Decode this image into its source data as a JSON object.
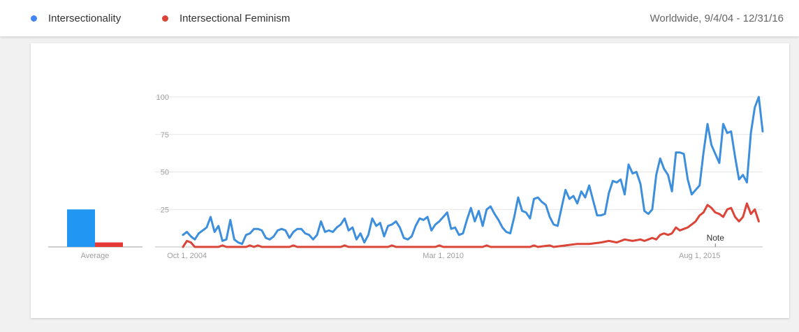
{
  "header": {
    "legend": [
      {
        "label": "Intersectionality",
        "color": "#4285f4"
      },
      {
        "label": "Intersectional Feminism",
        "color": "#db4437"
      }
    ],
    "region_range": "Worldwide, 9/4/04 - 12/31/16"
  },
  "chart_data": {
    "type": "line",
    "ylim": [
      0,
      100
    ],
    "y_ticks": [
      25,
      50,
      75,
      100
    ],
    "x_range": [
      "2004-09",
      "2016-12"
    ],
    "x_ticks": [
      {
        "label": "Oct 1, 2004",
        "date": "2004-10"
      },
      {
        "label": "Mar 1, 2010",
        "date": "2010-03"
      },
      {
        "label": "Aug 1, 2015",
        "date": "2015-08"
      }
    ],
    "annotation": {
      "label": "Note",
      "date": "2015-12"
    },
    "series": [
      {
        "name": "Intersectionality",
        "color": "#3d8fdd",
        "points": [
          [
            "2004-09",
            8
          ],
          [
            "2004-10",
            10
          ],
          [
            "2004-11",
            7
          ],
          [
            "2004-12",
            5
          ],
          [
            "2005-01",
            9
          ],
          [
            "2005-02",
            11
          ],
          [
            "2005-03",
            13
          ],
          [
            "2005-04",
            20
          ],
          [
            "2005-05",
            10
          ],
          [
            "2005-06",
            14
          ],
          [
            "2005-07",
            4
          ],
          [
            "2005-08",
            5
          ],
          [
            "2005-09",
            18
          ],
          [
            "2005-10",
            5
          ],
          [
            "2005-11",
            3
          ],
          [
            "2005-12",
            2
          ],
          [
            "2006-01",
            8
          ],
          [
            "2006-02",
            9
          ],
          [
            "2006-03",
            12
          ],
          [
            "2006-04",
            12
          ],
          [
            "2006-05",
            11
          ],
          [
            "2006-06",
            6
          ],
          [
            "2006-07",
            5
          ],
          [
            "2006-08",
            7
          ],
          [
            "2006-09",
            11
          ],
          [
            "2006-10",
            12
          ],
          [
            "2006-11",
            11
          ],
          [
            "2006-12",
            6
          ],
          [
            "2007-01",
            10
          ],
          [
            "2007-02",
            12
          ],
          [
            "2007-03",
            12
          ],
          [
            "2007-04",
            9
          ],
          [
            "2007-05",
            8
          ],
          [
            "2007-06",
            5
          ],
          [
            "2007-07",
            8
          ],
          [
            "2007-08",
            17
          ],
          [
            "2007-09",
            10
          ],
          [
            "2007-10",
            11
          ],
          [
            "2007-11",
            10
          ],
          [
            "2007-12",
            13
          ],
          [
            "2008-01",
            15
          ],
          [
            "2008-02",
            19
          ],
          [
            "2008-03",
            11
          ],
          [
            "2008-04",
            13
          ],
          [
            "2008-05",
            5
          ],
          [
            "2008-06",
            9
          ],
          [
            "2008-07",
            3
          ],
          [
            "2008-08",
            8
          ],
          [
            "2008-09",
            19
          ],
          [
            "2008-10",
            14
          ],
          [
            "2008-11",
            16
          ],
          [
            "2008-12",
            7
          ],
          [
            "2009-01",
            14
          ],
          [
            "2009-02",
            15
          ],
          [
            "2009-03",
            17
          ],
          [
            "2009-04",
            13
          ],
          [
            "2009-05",
            6
          ],
          [
            "2009-06",
            5
          ],
          [
            "2009-07",
            7
          ],
          [
            "2009-08",
            14
          ],
          [
            "2009-09",
            19
          ],
          [
            "2009-10",
            18
          ],
          [
            "2009-11",
            20
          ],
          [
            "2009-12",
            11
          ],
          [
            "2010-01",
            15
          ],
          [
            "2010-02",
            17
          ],
          [
            "2010-03",
            20
          ],
          [
            "2010-04",
            23
          ],
          [
            "2010-05",
            12
          ],
          [
            "2010-06",
            13
          ],
          [
            "2010-07",
            8
          ],
          [
            "2010-08",
            9
          ],
          [
            "2010-09",
            18
          ],
          [
            "2010-10",
            26
          ],
          [
            "2010-11",
            17
          ],
          [
            "2010-12",
            24
          ],
          [
            "2011-01",
            14
          ],
          [
            "2011-02",
            25
          ],
          [
            "2011-03",
            27
          ],
          [
            "2011-04",
            22
          ],
          [
            "2011-05",
            18
          ],
          [
            "2011-06",
            13
          ],
          [
            "2011-07",
            10
          ],
          [
            "2011-08",
            9
          ],
          [
            "2011-09",
            20
          ],
          [
            "2011-10",
            33
          ],
          [
            "2011-11",
            24
          ],
          [
            "2011-12",
            23
          ],
          [
            "2012-01",
            19
          ],
          [
            "2012-02",
            32
          ],
          [
            "2012-03",
            33
          ],
          [
            "2012-04",
            30
          ],
          [
            "2012-05",
            28
          ],
          [
            "2012-06",
            20
          ],
          [
            "2012-07",
            15
          ],
          [
            "2012-08",
            14
          ],
          [
            "2012-09",
            26
          ],
          [
            "2012-10",
            38
          ],
          [
            "2012-11",
            32
          ],
          [
            "2012-12",
            34
          ],
          [
            "2013-01",
            29
          ],
          [
            "2013-02",
            37
          ],
          [
            "2013-03",
            33
          ],
          [
            "2013-04",
            41
          ],
          [
            "2013-05",
            31
          ],
          [
            "2013-06",
            21
          ],
          [
            "2013-07",
            21
          ],
          [
            "2013-08",
            22
          ],
          [
            "2013-09",
            36
          ],
          [
            "2013-10",
            44
          ],
          [
            "2013-11",
            43
          ],
          [
            "2013-12",
            45
          ],
          [
            "2014-01",
            35
          ],
          [
            "2014-02",
            55
          ],
          [
            "2014-03",
            49
          ],
          [
            "2014-04",
            50
          ],
          [
            "2014-05",
            42
          ],
          [
            "2014-06",
            24
          ],
          [
            "2014-07",
            22
          ],
          [
            "2014-08",
            25
          ],
          [
            "2014-09",
            48
          ],
          [
            "2014-10",
            59
          ],
          [
            "2014-11",
            52
          ],
          [
            "2014-12",
            48
          ],
          [
            "2015-01",
            37
          ],
          [
            "2015-02",
            63
          ],
          [
            "2015-03",
            63
          ],
          [
            "2015-04",
            62
          ],
          [
            "2015-05",
            45
          ],
          [
            "2015-06",
            35
          ],
          [
            "2015-07",
            38
          ],
          [
            "2015-08",
            41
          ],
          [
            "2015-09",
            63
          ],
          [
            "2015-10",
            82
          ],
          [
            "2015-11",
            68
          ],
          [
            "2015-12",
            62
          ],
          [
            "2016-01",
            56
          ],
          [
            "2016-02",
            82
          ],
          [
            "2016-03",
            76
          ],
          [
            "2016-04",
            77
          ],
          [
            "2016-05",
            60
          ],
          [
            "2016-06",
            45
          ],
          [
            "2016-07",
            48
          ],
          [
            "2016-08",
            43
          ],
          [
            "2016-09",
            76
          ],
          [
            "2016-10",
            93
          ],
          [
            "2016-11",
            100
          ],
          [
            "2016-12",
            77
          ]
        ]
      },
      {
        "name": "Intersectional Feminism",
        "color": "#db4437",
        "points": [
          [
            "2004-09",
            0
          ],
          [
            "2004-10",
            4
          ],
          [
            "2004-11",
            3
          ],
          [
            "2004-12",
            0
          ],
          [
            "2005-01",
            0
          ],
          [
            "2005-06",
            0
          ],
          [
            "2005-07",
            1
          ],
          [
            "2005-08",
            0
          ],
          [
            "2006-01",
            0
          ],
          [
            "2006-02",
            1
          ],
          [
            "2006-03",
            0
          ],
          [
            "2006-04",
            1
          ],
          [
            "2006-05",
            0
          ],
          [
            "2006-12",
            0
          ],
          [
            "2007-01",
            1
          ],
          [
            "2007-02",
            0
          ],
          [
            "2008-01",
            0
          ],
          [
            "2008-02",
            1
          ],
          [
            "2008-03",
            0
          ],
          [
            "2009-01",
            0
          ],
          [
            "2009-02",
            1
          ],
          [
            "2009-03",
            0
          ],
          [
            "2010-01",
            0
          ],
          [
            "2010-02",
            1
          ],
          [
            "2010-03",
            0
          ],
          [
            "2011-01",
            0
          ],
          [
            "2011-02",
            1
          ],
          [
            "2011-03",
            0
          ],
          [
            "2012-01",
            0
          ],
          [
            "2012-02",
            1
          ],
          [
            "2012-03",
            0
          ],
          [
            "2012-06",
            1
          ],
          [
            "2012-07",
            0
          ],
          [
            "2012-10",
            1
          ],
          [
            "2013-01",
            2
          ],
          [
            "2013-04",
            2
          ],
          [
            "2013-07",
            3
          ],
          [
            "2013-09",
            4
          ],
          [
            "2013-11",
            3
          ],
          [
            "2014-01",
            5
          ],
          [
            "2014-03",
            4
          ],
          [
            "2014-05",
            5
          ],
          [
            "2014-06",
            4
          ],
          [
            "2014-07",
            5
          ],
          [
            "2014-08",
            6
          ],
          [
            "2014-09",
            5
          ],
          [
            "2014-10",
            8
          ],
          [
            "2014-11",
            9
          ],
          [
            "2014-12",
            8
          ],
          [
            "2015-01",
            9
          ],
          [
            "2015-02",
            13
          ],
          [
            "2015-03",
            11
          ],
          [
            "2015-04",
            12
          ],
          [
            "2015-05",
            13
          ],
          [
            "2015-06",
            15
          ],
          [
            "2015-07",
            17
          ],
          [
            "2015-08",
            21
          ],
          [
            "2015-09",
            23
          ],
          [
            "2015-10",
            28
          ],
          [
            "2015-11",
            26
          ],
          [
            "2015-12",
            23
          ],
          [
            "2016-01",
            22
          ],
          [
            "2016-02",
            20
          ],
          [
            "2016-03",
            25
          ],
          [
            "2016-04",
            26
          ],
          [
            "2016-05",
            20
          ],
          [
            "2016-06",
            17
          ],
          [
            "2016-07",
            20
          ],
          [
            "2016-08",
            29
          ],
          [
            "2016-09",
            22
          ],
          [
            "2016-10",
            25
          ],
          [
            "2016-11",
            17
          ]
        ]
      }
    ],
    "average_bars": {
      "label": "Average",
      "values": [
        {
          "name": "Intersectionality",
          "value": 25,
          "color": "#2196f3"
        },
        {
          "name": "Intersectional Feminism",
          "value": 3,
          "color": "#e53935"
        }
      ]
    }
  }
}
